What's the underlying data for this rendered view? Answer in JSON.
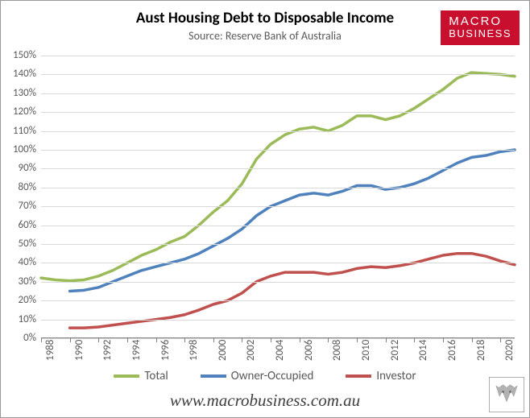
{
  "title": "Aust Housing Debt to Disposable Income",
  "subtitle": "Source: Reserve Bank of Australia",
  "title_fontsize": 19,
  "subtitle_fontsize": 14,
  "logo": {
    "line1": "MACRO",
    "line2": "BUSINESS",
    "bg": "#c8102e",
    "fg": "#ffffff"
  },
  "footer_url": "www.macrobusiness.com.au",
  "chart": {
    "type": "line",
    "background_color": "#ffffff",
    "grid_color": "#d9d9d9",
    "axis_color": "#808080",
    "xlim": [
      1988,
      2021
    ],
    "ylim": [
      0,
      150
    ],
    "ytick_step": 10,
    "y_suffix": "%",
    "xticks": [
      1988,
      1990,
      1992,
      1994,
      1996,
      1998,
      2000,
      2002,
      2004,
      2006,
      2008,
      2010,
      2012,
      2014,
      2016,
      2018,
      2020
    ],
    "xtick_rotation": -90,
    "line_width": 3.5,
    "series": [
      {
        "name": "Total",
        "color": "#9bbb59",
        "points": [
          [
            1988,
            32
          ],
          [
            1989,
            31
          ],
          [
            1990,
            30.5
          ],
          [
            1991,
            31
          ],
          [
            1992,
            33
          ],
          [
            1993,
            36
          ],
          [
            1994,
            40
          ],
          [
            1995,
            44
          ],
          [
            1996,
            47
          ],
          [
            1997,
            51
          ],
          [
            1998,
            54
          ],
          [
            1999,
            60
          ],
          [
            2000,
            67
          ],
          [
            2001,
            73
          ],
          [
            2002,
            82
          ],
          [
            2003,
            95
          ],
          [
            2004,
            103
          ],
          [
            2005,
            108
          ],
          [
            2006,
            111
          ],
          [
            2007,
            112
          ],
          [
            2008,
            110
          ],
          [
            2009,
            113
          ],
          [
            2010,
            118
          ],
          [
            2011,
            118
          ],
          [
            2012,
            116
          ],
          [
            2013,
            118
          ],
          [
            2014,
            122
          ],
          [
            2015,
            127
          ],
          [
            2016,
            132
          ],
          [
            2017,
            138
          ],
          [
            2018,
            141
          ],
          [
            2019,
            140.5
          ],
          [
            2020,
            140
          ],
          [
            2021,
            139
          ]
        ]
      },
      {
        "name": "Owner-Occupied",
        "color": "#4f81bd",
        "points": [
          [
            1990,
            25
          ],
          [
            1991,
            25.5
          ],
          [
            1992,
            27
          ],
          [
            1993,
            30
          ],
          [
            1994,
            33
          ],
          [
            1995,
            36
          ],
          [
            1996,
            38
          ],
          [
            1997,
            40
          ],
          [
            1998,
            42
          ],
          [
            1999,
            45
          ],
          [
            2000,
            49
          ],
          [
            2001,
            53
          ],
          [
            2002,
            58
          ],
          [
            2003,
            65
          ],
          [
            2004,
            70
          ],
          [
            2005,
            73
          ],
          [
            2006,
            76
          ],
          [
            2007,
            77
          ],
          [
            2008,
            76
          ],
          [
            2009,
            78
          ],
          [
            2010,
            81
          ],
          [
            2011,
            81
          ],
          [
            2012,
            79
          ],
          [
            2013,
            80
          ],
          [
            2014,
            82
          ],
          [
            2015,
            85
          ],
          [
            2016,
            89
          ],
          [
            2017,
            93
          ],
          [
            2018,
            96
          ],
          [
            2019,
            97
          ],
          [
            2020,
            99
          ],
          [
            2021,
            100
          ]
        ]
      },
      {
        "name": "Investor",
        "color": "#c0504d",
        "points": [
          [
            1990,
            5.5
          ],
          [
            1991,
            5.5
          ],
          [
            1992,
            6
          ],
          [
            1993,
            7
          ],
          [
            1994,
            8
          ],
          [
            1995,
            9
          ],
          [
            1996,
            10
          ],
          [
            1997,
            11
          ],
          [
            1998,
            12.5
          ],
          [
            1999,
            15
          ],
          [
            2000,
            18
          ],
          [
            2001,
            20
          ],
          [
            2002,
            24
          ],
          [
            2003,
            30
          ],
          [
            2004,
            33
          ],
          [
            2005,
            35
          ],
          [
            2006,
            35
          ],
          [
            2007,
            35
          ],
          [
            2008,
            34
          ],
          [
            2009,
            35
          ],
          [
            2010,
            37
          ],
          [
            2011,
            38
          ],
          [
            2012,
            37.5
          ],
          [
            2013,
            38.5
          ],
          [
            2014,
            40
          ],
          [
            2015,
            42
          ],
          [
            2016,
            44
          ],
          [
            2017,
            45
          ],
          [
            2018,
            45
          ],
          [
            2019,
            43.5
          ],
          [
            2020,
            41
          ],
          [
            2021,
            39
          ]
        ]
      }
    ]
  },
  "legend_fontsize": 15,
  "axis_fontsize": 13
}
